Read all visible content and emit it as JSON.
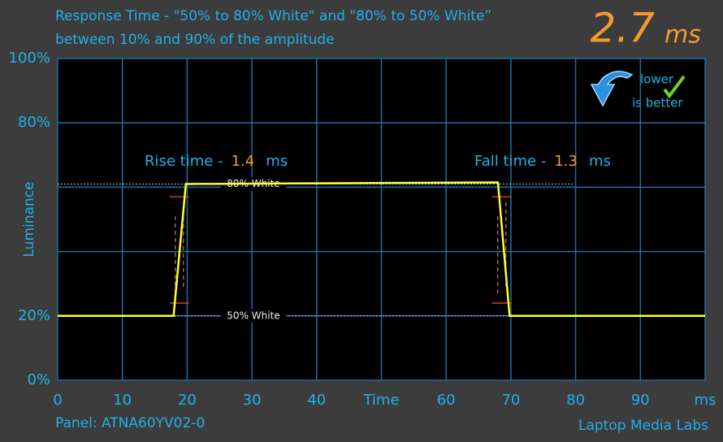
{
  "chart_data": {
    "type": "line",
    "title": [
      "Response Time - \"50% to 80% White\" and \"80% to 50% White”",
      "between 10% and 90% of the amplitude"
    ],
    "response_time": 2.7,
    "response_unit": "ms",
    "badge": [
      "lower",
      "is better"
    ],
    "y_label": "Luminance",
    "xlim": [
      0,
      100
    ],
    "ylim": [
      0,
      100
    ],
    "xticks": [
      0,
      10,
      20,
      30,
      40,
      {
        "value": 50,
        "label": "Time"
      },
      60,
      70,
      80,
      90,
      {
        "value": 100,
        "label": "ms"
      }
    ],
    "yticks": [
      {
        "value": 0,
        "label": "0%"
      },
      {
        "value": 20,
        "label": "20%"
      },
      {
        "value": 80,
        "label": "80%"
      },
      {
        "value": 100,
        "label": "100%"
      }
    ],
    "y_minor_grid": [
      40,
      60
    ],
    "grid": true,
    "series": [
      {
        "name": "Luminance",
        "color": "#ffff33",
        "x": [
          0,
          17.9,
          19.8,
          40,
          68,
          69.8,
          100
        ],
        "values": [
          20,
          20,
          61,
          61.2,
          61.5,
          20,
          20
        ]
      }
    ],
    "reference_lines": [
      {
        "label": "80% White",
        "value": 61
      },
      {
        "label": "50% White",
        "value": 20
      }
    ],
    "amplitude_markers": [
      {
        "x": 18.8,
        "y": [
          24,
          57
        ]
      },
      {
        "x": 68.6,
        "y": [
          24,
          57
        ]
      }
    ],
    "rise_time": {
      "label": "Rise time -",
      "value": 1.4,
      "unit": "ms"
    },
    "fall_time": {
      "label": "Fall time -",
      "value": 1.3,
      "unit": "ms"
    },
    "panel": "Panel: ATNA60YV02-0",
    "source": "Laptop Media Labs"
  }
}
